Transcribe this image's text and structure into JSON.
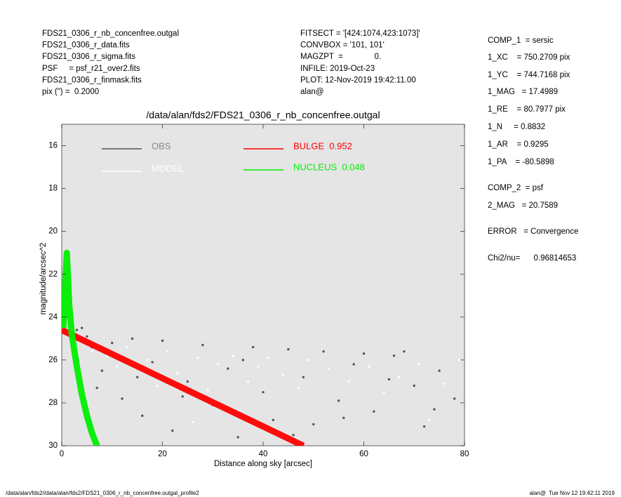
{
  "header": {
    "left": [
      "FDS21_0306_r_nb_concenfree.outgal",
      "FDS21_0306_r_data.fits",
      "FDS21_0306_r_sigma.fits",
      "PSF     = psf_r21_over2.fits",
      "FDS21_0306_r_finmask.fits",
      "pix (\") =  0.2000"
    ],
    "middle": [
      "FITSECT = '[424:1074,423:1073]'",
      "CONVBOX = '101, 101'",
      "MAGZPT  =              0.",
      "INFILE: 2019-Oct-23",
      "PLOT: 12-Nov-2019 19:42:11.00",
      "alan@"
    ],
    "right": [
      "COMP_1  = sersic",
      "1_XC    = 750.2709 pix",
      "1_YC    = 744.7168 pix",
      "1_MAG   = 17.4989",
      "1_RE    = 80.7977 pix",
      "1_N     = 0.8832",
      "1_AR    = 0.9295",
      "1_PA    = -80.5898",
      "COMP_2  = psf",
      "2_MAG   = 20.7589",
      "ERROR   = Convergence",
      "Chi2/nu=      0.96814653"
    ]
  },
  "footer": {
    "left": "/data/alan/fds2//data/alan/fds2/FDS21_0306_r_nb_concenfree.outgal_profile2",
    "right": "alan@  Tue Nov 12 19:42:11 2019"
  },
  "chart_data": {
    "type": "scatter",
    "title": "/data/alan/fds2/FDS21_0306_r_nb_concenfree.outgal",
    "x_label": "Distance along sky [arcsec]",
    "y_label": "magnitude/arcsec^2",
    "xlim": [
      0,
      80
    ],
    "ylim": [
      30,
      15
    ],
    "xticks": [
      0,
      20,
      40,
      60,
      80
    ],
    "yticks": [
      16,
      18,
      20,
      22,
      24,
      26,
      28,
      30
    ],
    "background": "#e5e5e5",
    "series": [
      {
        "name": "OBS",
        "color": "#555555",
        "mode": "markers",
        "x": [
          1,
          2,
          3,
          4,
          5,
          6,
          8,
          10,
          12,
          14,
          16,
          18,
          20,
          22,
          25,
          28,
          30,
          33,
          35,
          38,
          40,
          42,
          45,
          48,
          50,
          52,
          55,
          58,
          60,
          62,
          65,
          68,
          70,
          72,
          75,
          78,
          3,
          7,
          15,
          24,
          36,
          46,
          56,
          66,
          74
        ],
        "values": [
          24.0,
          24.3,
          24.6,
          24.5,
          24.9,
          25.4,
          26.5,
          25.2,
          27.8,
          25.0,
          28.6,
          26.1,
          25.1,
          29.3,
          27.0,
          25.3,
          28.1,
          26.4,
          29.6,
          25.4,
          27.5,
          28.8,
          25.5,
          26.8,
          29.0,
          25.6,
          27.9,
          26.2,
          25.7,
          28.4,
          26.9,
          25.6,
          27.2,
          29.1,
          26.5,
          27.8,
          26.0,
          27.3,
          26.8,
          27.7,
          26.0,
          29.5,
          28.7,
          25.8,
          28.3
        ]
      },
      {
        "name": "MODEL",
        "color": "#ffffff",
        "mode": "markers",
        "x": [
          2,
          4,
          6,
          9,
          11,
          13,
          17,
          19,
          21,
          23,
          27,
          29,
          31,
          34,
          37,
          39,
          41,
          44,
          47,
          49,
          53,
          57,
          61,
          64,
          67,
          71,
          73,
          76,
          79,
          26
        ],
        "values": [
          24.6,
          25.0,
          25.6,
          25.8,
          26.3,
          25.4,
          26.0,
          27.2,
          25.6,
          26.6,
          25.9,
          27.4,
          26.2,
          25.8,
          27.0,
          26.3,
          25.9,
          26.7,
          27.3,
          26.0,
          26.4,
          27.0,
          26.3,
          27.5,
          26.8,
          26.2,
          28.8,
          27.1,
          26.0,
          28.9
        ]
      },
      {
        "name": "BULGE  0.952",
        "color": "#ff0000",
        "mode": "band",
        "x": [
          0,
          48
        ],
        "values": [
          24.6,
          30
        ]
      },
      {
        "name": "NUCLEUS  0.048",
        "color": "#00ee00",
        "mode": "band",
        "x": [
          0.3,
          0.7,
          1.0,
          1.5,
          2,
          3,
          4,
          5,
          6,
          7
        ],
        "values": [
          24.5,
          22.5,
          21.0,
          23.5,
          24.8,
          26.3,
          27.6,
          28.6,
          29.4,
          30
        ]
      }
    ]
  }
}
